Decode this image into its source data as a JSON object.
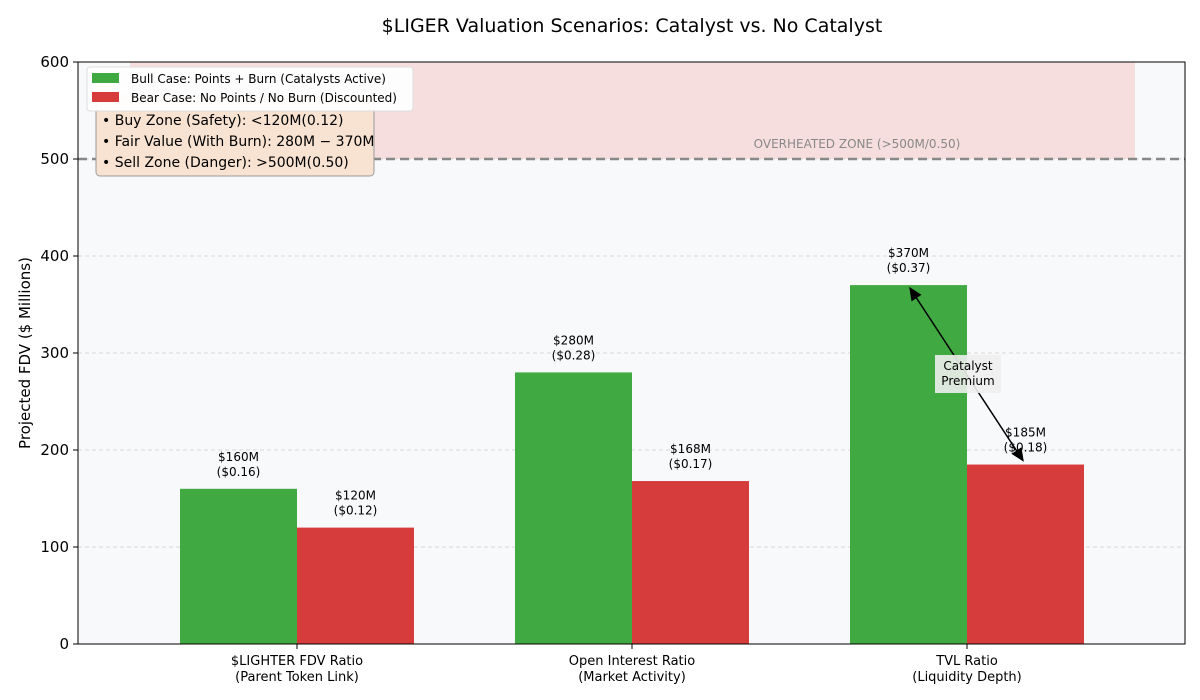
{
  "chart_data": {
    "type": "bar",
    "title": "$LIGER Valuation Scenarios: Catalyst vs. No Catalyst",
    "xlabel": "",
    "ylabel": "Projected FDV ($ Millions)",
    "ylim": [
      0,
      600
    ],
    "yticks": [
      0,
      100,
      200,
      300,
      400,
      500,
      600
    ],
    "grid": true,
    "categories": [
      [
        "$LIGHTER FDV Ratio",
        "(Parent Token Link)"
      ],
      [
        "Open Interest Ratio",
        "(Market Activity)"
      ],
      [
        "TVL Ratio",
        "(Liquidity Depth)"
      ]
    ],
    "series": [
      {
        "name": "Bull Case: Points + Burn (Catalysts Active)",
        "color": "#41a942",
        "values": [
          160,
          280,
          370
        ],
        "labels": [
          [
            "$160M",
            "($0.16)"
          ],
          [
            "$280M",
            "($0.28)"
          ],
          [
            "$370M",
            "($0.37)"
          ]
        ]
      },
      {
        "name": "Bear Case: No Points / No Burn (Discounted)",
        "color": "#d73c3c",
        "values": [
          120,
          168,
          185
        ],
        "labels": [
          [
            "$120M",
            "($0.12)"
          ],
          [
            "$168M",
            "($0.17)"
          ],
          [
            "$185M",
            "($0.18)"
          ]
        ]
      }
    ],
    "legend_placement": "top-left",
    "overheated_zone": {
      "from": 500,
      "to": 600,
      "label": "OVERHEATED ZONE (>500M/0.50)"
    },
    "threshold_line": 500,
    "info_box": [
      "• Buy Zone (Safety): <120M(0.12)",
      "• Fair Value (With Burn): 280M − 370M",
      "• Sell Zone (Danger): >500M(0.50)"
    ],
    "annotation": {
      "text": [
        "Catalyst",
        "Premium"
      ],
      "from_value": 370,
      "to_value": 185,
      "category": 2
    }
  }
}
